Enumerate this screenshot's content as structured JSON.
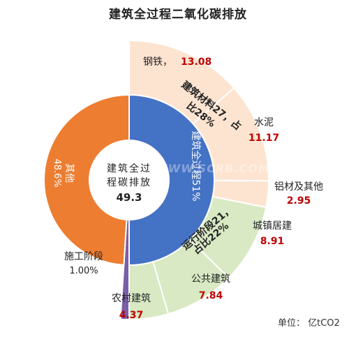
{
  "chart_data": {
    "type": "pie",
    "title": "建筑全过程二氧化碳排放",
    "unit_label": "单位：  亿tCO2",
    "center_label": [
      "建筑全过",
      "程碳排放"
    ],
    "center_value": "49.3",
    "watermark": "WWW.SCRB.COM",
    "inner_ring": [
      {
        "name": "其他",
        "value_text": "48.6%",
        "value": 48.6,
        "color": "#ed7d31"
      },
      {
        "name": "建筑全过程",
        "value_text": "51%",
        "value": 51,
        "color": "#4472c4"
      },
      {
        "name": "施工阶段",
        "value_text": "1.00%",
        "value": 1.0,
        "color": "#7a5ea8"
      }
    ],
    "middle_ring": [
      {
        "name": "建筑材料",
        "value_text": "建筑材料27，占比28%",
        "value": 27,
        "color": "#e46c0a"
      },
      {
        "name": "运行阶段",
        "value_text": "运行阶段21，占比22%",
        "value": 21,
        "color": "#70a13c"
      }
    ],
    "outer_ring": [
      {
        "name": "钢铁",
        "value": 13.08,
        "color": "#fde4d1"
      },
      {
        "name": "水泥",
        "value": 11.17,
        "color": "#fde4d1"
      },
      {
        "name": "铝材及其他",
        "value": 2.95,
        "color": "#fde4d1"
      },
      {
        "name": "城镇居建",
        "value": 8.91,
        "color": "#d8e9c3"
      },
      {
        "name": "公共建筑",
        "value": 7.84,
        "color": "#d8e9c3"
      },
      {
        "name": "农村建筑",
        "value": 4.37,
        "color": "#d8e9c3"
      }
    ]
  }
}
